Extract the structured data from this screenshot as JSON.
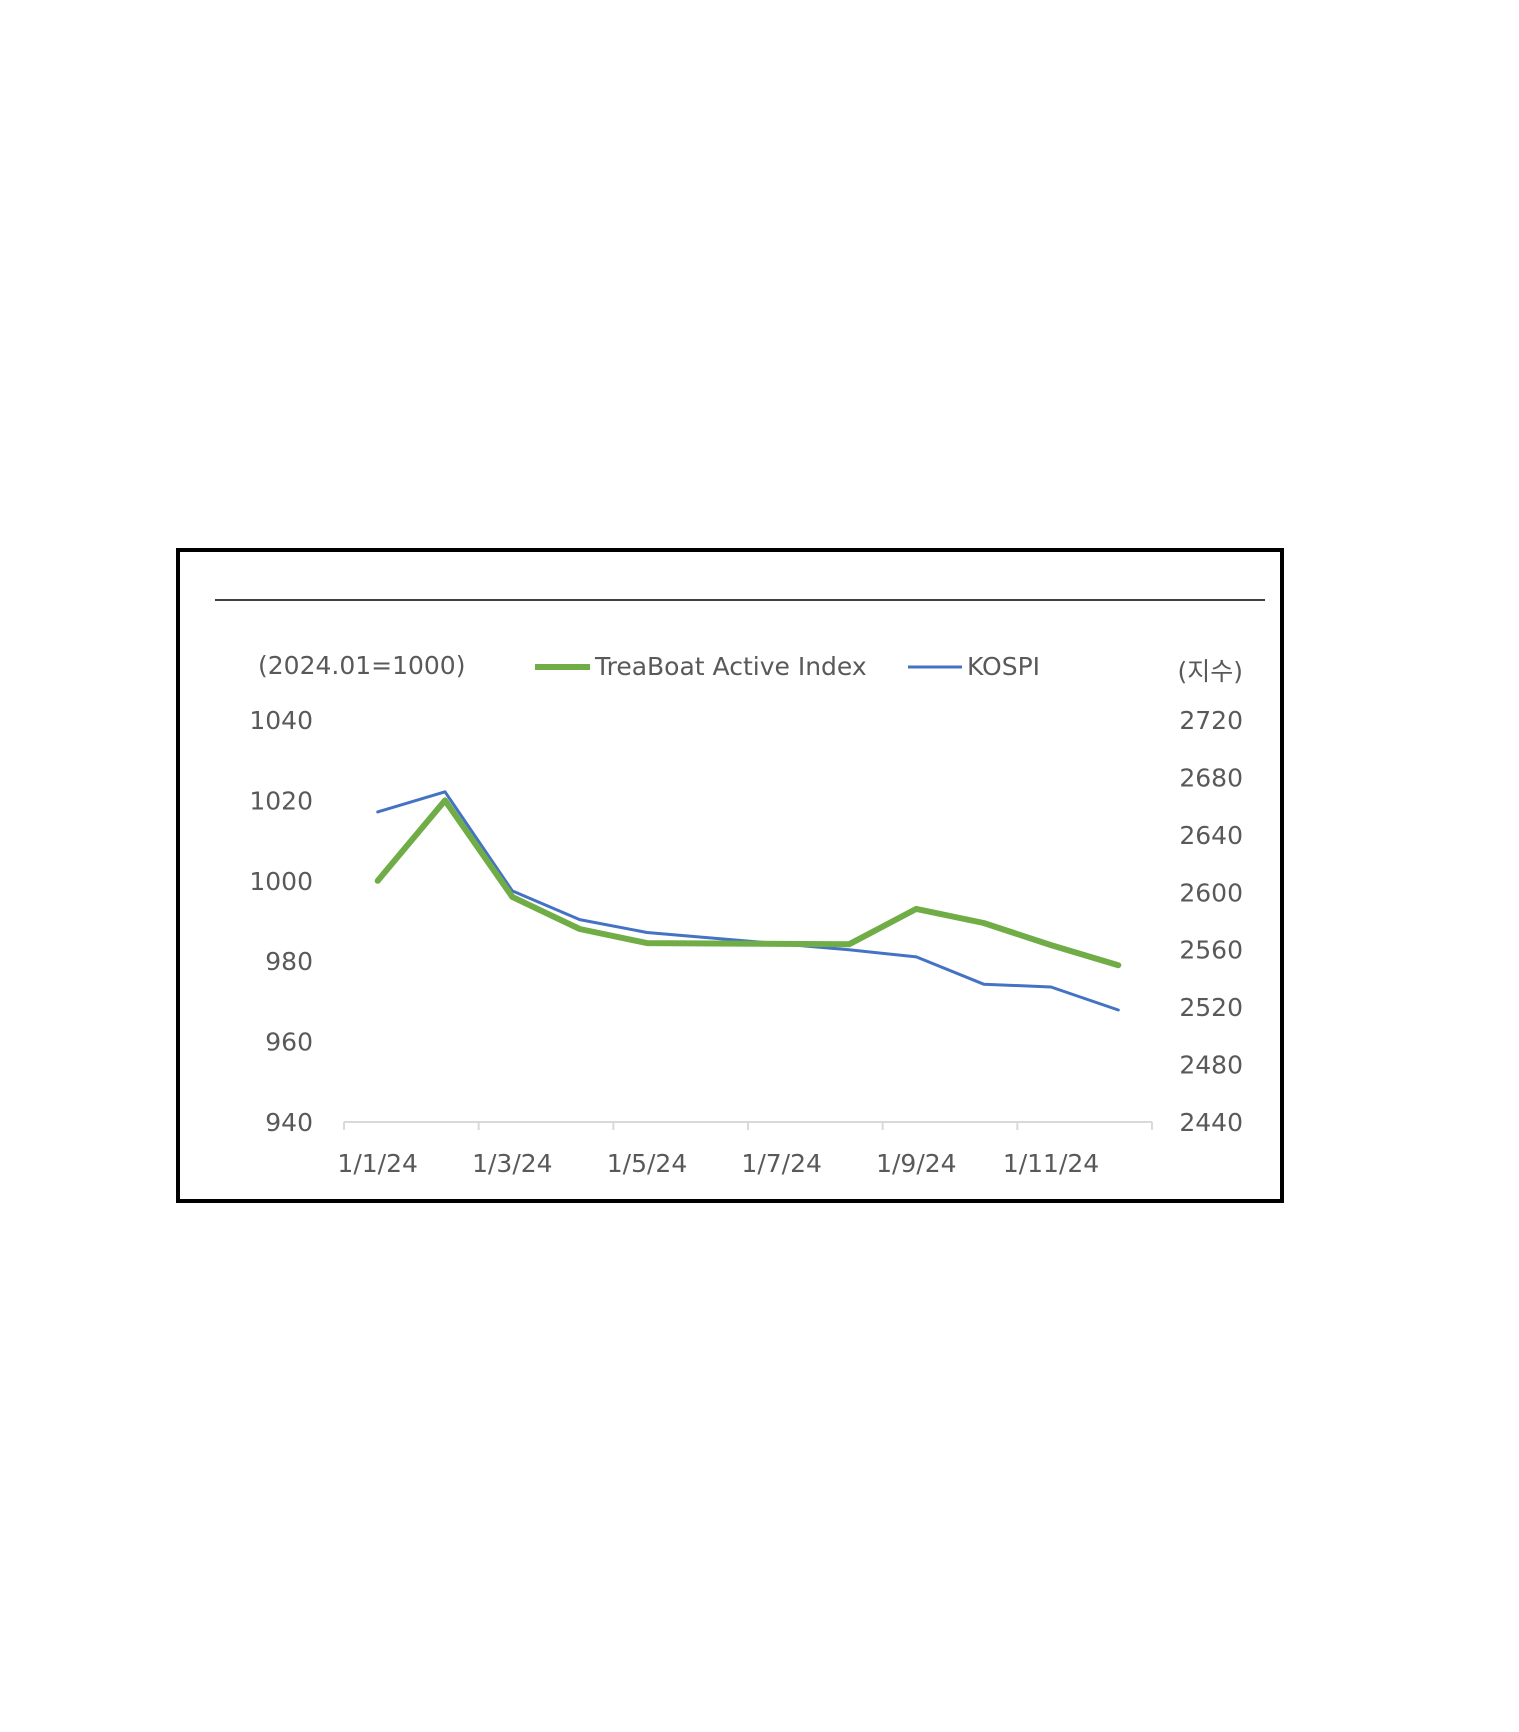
{
  "chart_data": {
    "type": "line",
    "title": "",
    "left_axis_unit": "(2024.01=1000)",
    "right_axis_unit": "(지수)",
    "x": [
      "2024-01",
      "2024-02",
      "2024-03",
      "2024-04",
      "2024-05",
      "2024-06",
      "2024-07",
      "2024-08",
      "2024-09",
      "2024-10",
      "2024-11",
      "2024-12"
    ],
    "x_tick_labels": [
      "1/1/24",
      "1/3/24",
      "1/5/24",
      "1/7/24",
      "1/9/24",
      "1/11/24"
    ],
    "series": [
      {
        "name": "TreaBoat Active Index",
        "axis": "left",
        "color": "#70ad47",
        "values": [
          1000,
          1020,
          996,
          988,
          984.5,
          984.4,
          984.3,
          984.2,
          993,
          989.5,
          984,
          979
        ]
      },
      {
        "name": "KOSPI",
        "axis": "right",
        "color": "#4472c4",
        "values": [
          2656,
          2670,
          2601,
          2581,
          2572,
          2568,
          2564,
          2560,
          2555,
          2536,
          2534,
          2518
        ]
      }
    ],
    "left_axis": {
      "min": 940,
      "max": 1040,
      "ticks": [
        940,
        960,
        980,
        1000,
        1020,
        1040
      ]
    },
    "right_axis": {
      "min": 2440,
      "max": 2720,
      "ticks": [
        2440,
        2480,
        2520,
        2560,
        2600,
        2640,
        2680,
        2720
      ]
    },
    "grid": false,
    "legend_position": "top"
  }
}
